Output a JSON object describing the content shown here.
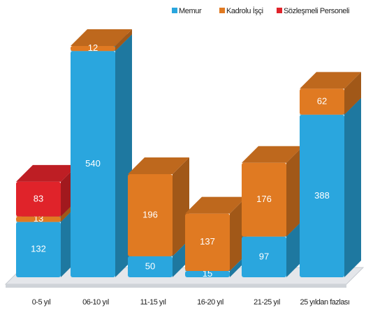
{
  "chart_data": {
    "type": "bar3d_stacked",
    "categories": [
      "0-5 yıl",
      "06-10 yıl",
      "11-15 yıl",
      "16-20 yıl",
      "21-25 yıl",
      "25 yıldan fazlası"
    ],
    "series": [
      {
        "name": "Memur",
        "color": "#2aa6de",
        "values": [
          132,
          540,
          50,
          15,
          97,
          388
        ]
      },
      {
        "name": "Kadrolu İşçi",
        "color": "#e07a22",
        "values": [
          13,
          12,
          196,
          137,
          176,
          62
        ]
      },
      {
        "name": "Sözleşmeli Personeli",
        "color": "#e0232a",
        "values": [
          83,
          null,
          null,
          null,
          null,
          null
        ]
      }
    ],
    "legend": "top-right"
  }
}
